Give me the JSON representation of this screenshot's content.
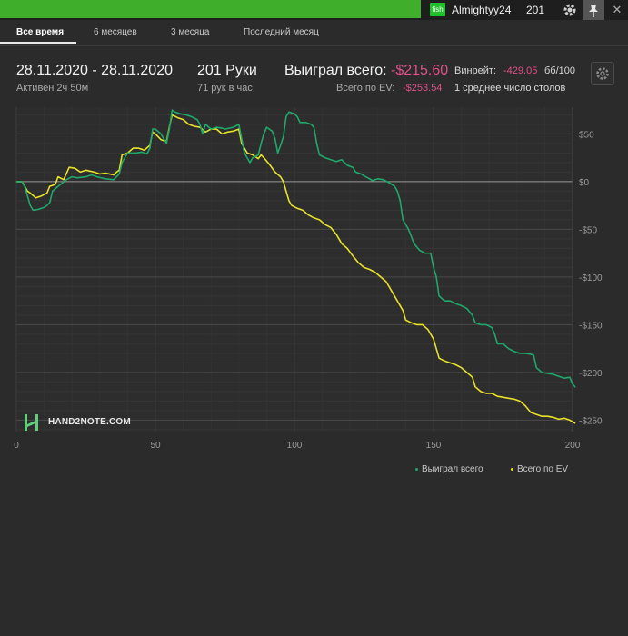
{
  "header": {
    "badge": "fish",
    "username": "Almightyy24",
    "hands": "201",
    "icons": [
      "gear-icon",
      "pin-icon",
      "close-icon"
    ]
  },
  "tabs": [
    {
      "label": "Все время",
      "active": true
    },
    {
      "label": "6 месяцев",
      "active": false
    },
    {
      "label": "3 месяца",
      "active": false
    },
    {
      "label": "Последний месяц",
      "active": false
    }
  ],
  "summary": {
    "date_range": "28.11.2020 - 28.11.2020",
    "active_time": "Активен 2ч 50м",
    "hands_label": "201 Руки",
    "hands_per_hour": "71 рук в час",
    "won_label": "Выиграл всего:",
    "won_value": "-$215.60",
    "ev_label": "Всего по EV:",
    "ev_value": "-$253.54",
    "winrate_label": "Винрейт:",
    "winrate_value": "-429.05",
    "winrate_unit": "бб/100",
    "tables_label": "1 среднее число столов"
  },
  "logo_text": "HAND2NOTE.COM",
  "colors": {
    "background": "#2b2b2b",
    "won_series": "#1fa86b",
    "ev_series": "#e8e22a",
    "negative": "#e0508a",
    "topbar_green": "#3fae2a"
  },
  "chart_data": {
    "type": "line",
    "x_ticks": [
      0,
      50,
      100,
      150,
      200
    ],
    "y_ticks": [
      50,
      0,
      -50,
      -100,
      -150,
      -200,
      -250
    ],
    "y_tick_labels": [
      "$50",
      "$0",
      "-$50",
      "-$100",
      "-$150",
      "-$200",
      "-$250"
    ],
    "xlim": [
      0,
      200
    ],
    "ylim": [
      -262,
      78
    ],
    "grid": true,
    "legend_position": "bottom-right",
    "series": [
      {
        "name": "Выиграл всего",
        "color": "#1fa86b",
        "points": [
          [
            0,
            0
          ],
          [
            2,
            0
          ],
          [
            3,
            -5
          ],
          [
            4,
            -15
          ],
          [
            5,
            -25
          ],
          [
            6,
            -30
          ],
          [
            8,
            -29
          ],
          [
            10,
            -27
          ],
          [
            11,
            -25
          ],
          [
            12,
            -22
          ],
          [
            13,
            -10
          ],
          [
            15,
            -5
          ],
          [
            18,
            2
          ],
          [
            20,
            5
          ],
          [
            22,
            4
          ],
          [
            25,
            5
          ],
          [
            27,
            7
          ],
          [
            29,
            5
          ],
          [
            32,
            3
          ],
          [
            35,
            2
          ],
          [
            36,
            5
          ],
          [
            37,
            8
          ],
          [
            38,
            20
          ],
          [
            39,
            25
          ],
          [
            40,
            30
          ],
          [
            43,
            30
          ],
          [
            45,
            31
          ],
          [
            47,
            29
          ],
          [
            48,
            35
          ],
          [
            49,
            55
          ],
          [
            50,
            55
          ],
          [
            52,
            50
          ],
          [
            54,
            40
          ],
          [
            55,
            55
          ],
          [
            56,
            75
          ],
          [
            57,
            73
          ],
          [
            59,
            71
          ],
          [
            61,
            70
          ],
          [
            63,
            68
          ],
          [
            65,
            65
          ],
          [
            66,
            60
          ],
          [
            67,
            50
          ],
          [
            68,
            60
          ],
          [
            70,
            55
          ],
          [
            72,
            57
          ],
          [
            74,
            56
          ],
          [
            75,
            55
          ],
          [
            78,
            57
          ],
          [
            80,
            60
          ],
          [
            81,
            45
          ],
          [
            82,
            30
          ],
          [
            84,
            20
          ],
          [
            85,
            25
          ],
          [
            87,
            28
          ],
          [
            88,
            40
          ],
          [
            89,
            50
          ],
          [
            90,
            57
          ],
          [
            92,
            53
          ],
          [
            93,
            45
          ],
          [
            94,
            30
          ],
          [
            95,
            38
          ],
          [
            96,
            47
          ],
          [
            97,
            68
          ],
          [
            98,
            73
          ],
          [
            100,
            71
          ],
          [
            101,
            68
          ],
          [
            102,
            62
          ],
          [
            104,
            62
          ],
          [
            106,
            60
          ],
          [
            107,
            57
          ],
          [
            108,
            40
          ],
          [
            109,
            28
          ],
          [
            111,
            25
          ],
          [
            113,
            23
          ],
          [
            115,
            21
          ],
          [
            117,
            23
          ],
          [
            119,
            17
          ],
          [
            121,
            15
          ],
          [
            122,
            10
          ],
          [
            124,
            8
          ],
          [
            125,
            6
          ],
          [
            127,
            3
          ],
          [
            128,
            1
          ],
          [
            130,
            3
          ],
          [
            132,
            2
          ],
          [
            134,
            -1
          ],
          [
            136,
            -5
          ],
          [
            137,
            -10
          ],
          [
            138,
            -20
          ],
          [
            139,
            -40
          ],
          [
            141,
            -50
          ],
          [
            143,
            -65
          ],
          [
            145,
            -72
          ],
          [
            147,
            -75
          ],
          [
            149,
            -75
          ],
          [
            150,
            -90
          ],
          [
            151,
            -100
          ],
          [
            152,
            -120
          ],
          [
            154,
            -125
          ],
          [
            156,
            -125
          ],
          [
            158,
            -128
          ],
          [
            160,
            -130
          ],
          [
            162,
            -133
          ],
          [
            164,
            -140
          ],
          [
            165,
            -148
          ],
          [
            167,
            -150
          ],
          [
            169,
            -150
          ],
          [
            171,
            -153
          ],
          [
            172,
            -160
          ],
          [
            173,
            -170
          ],
          [
            175,
            -170
          ],
          [
            177,
            -175
          ],
          [
            179,
            -178
          ],
          [
            181,
            -180
          ],
          [
            183,
            -180
          ],
          [
            185,
            -181
          ],
          [
            186,
            -182
          ],
          [
            187,
            -195
          ],
          [
            189,
            -200
          ],
          [
            191,
            -201
          ],
          [
            193,
            -202
          ],
          [
            195,
            -204
          ],
          [
            197,
            -206
          ],
          [
            199,
            -205
          ],
          [
            200,
            -212
          ],
          [
            201,
            -215.6
          ]
        ]
      },
      {
        "name": "Всего по EV",
        "color": "#e8e22a",
        "points": [
          [
            0,
            0
          ],
          [
            2,
            0
          ],
          [
            3,
            -5
          ],
          [
            4,
            -10
          ],
          [
            5,
            -12
          ],
          [
            7,
            -17
          ],
          [
            9,
            -15
          ],
          [
            11,
            -12
          ],
          [
            12,
            -5
          ],
          [
            14,
            -3
          ],
          [
            15,
            5
          ],
          [
            17,
            2
          ],
          [
            19,
            15
          ],
          [
            21,
            14
          ],
          [
            23,
            10
          ],
          [
            25,
            12
          ],
          [
            28,
            10
          ],
          [
            30,
            8
          ],
          [
            32,
            9
          ],
          [
            35,
            7
          ],
          [
            36,
            10
          ],
          [
            37,
            12
          ],
          [
            38,
            28
          ],
          [
            40,
            30
          ],
          [
            42,
            35
          ],
          [
            44,
            35
          ],
          [
            46,
            33
          ],
          [
            48,
            38
          ],
          [
            49,
            52
          ],
          [
            50,
            50
          ],
          [
            52,
            44
          ],
          [
            54,
            42
          ],
          [
            55,
            57
          ],
          [
            56,
            70
          ],
          [
            58,
            67
          ],
          [
            60,
            65
          ],
          [
            62,
            60
          ],
          [
            64,
            58
          ],
          [
            66,
            57
          ],
          [
            68,
            52
          ],
          [
            70,
            55
          ],
          [
            72,
            55
          ],
          [
            74,
            50
          ],
          [
            76,
            52
          ],
          [
            78,
            53
          ],
          [
            80,
            55
          ],
          [
            81,
            40
          ],
          [
            83,
            30
          ],
          [
            85,
            28
          ],
          [
            87,
            24
          ],
          [
            88,
            28
          ],
          [
            89,
            25
          ],
          [
            91,
            18
          ],
          [
            93,
            10
          ],
          [
            95,
            5
          ],
          [
            96,
            0
          ],
          [
            97,
            -10
          ],
          [
            98,
            -20
          ],
          [
            99,
            -25
          ],
          [
            101,
            -28
          ],
          [
            103,
            -30
          ],
          [
            105,
            -35
          ],
          [
            107,
            -38
          ],
          [
            109,
            -40
          ],
          [
            111,
            -45
          ],
          [
            113,
            -48
          ],
          [
            115,
            -55
          ],
          [
            117,
            -65
          ],
          [
            119,
            -70
          ],
          [
            121,
            -78
          ],
          [
            123,
            -85
          ],
          [
            125,
            -90
          ],
          [
            127,
            -92
          ],
          [
            129,
            -95
          ],
          [
            131,
            -100
          ],
          [
            133,
            -105
          ],
          [
            135,
            -115
          ],
          [
            137,
            -125
          ],
          [
            139,
            -135
          ],
          [
            140,
            -145
          ],
          [
            142,
            -148
          ],
          [
            144,
            -150
          ],
          [
            146,
            -150
          ],
          [
            148,
            -155
          ],
          [
            150,
            -165
          ],
          [
            151,
            -175
          ],
          [
            152,
            -185
          ],
          [
            154,
            -188
          ],
          [
            156,
            -190
          ],
          [
            158,
            -192
          ],
          [
            160,
            -195
          ],
          [
            162,
            -200
          ],
          [
            164,
            -205
          ],
          [
            165,
            -215
          ],
          [
            167,
            -220
          ],
          [
            169,
            -222
          ],
          [
            171,
            -222
          ],
          [
            173,
            -225
          ],
          [
            175,
            -226
          ],
          [
            177,
            -227
          ],
          [
            179,
            -228
          ],
          [
            181,
            -230
          ],
          [
            183,
            -235
          ],
          [
            185,
            -242
          ],
          [
            187,
            -244
          ],
          [
            189,
            -246
          ],
          [
            191,
            -246
          ],
          [
            193,
            -247
          ],
          [
            195,
            -249
          ],
          [
            197,
            -248
          ],
          [
            199,
            -250
          ],
          [
            201,
            -253.54
          ]
        ]
      }
    ]
  }
}
